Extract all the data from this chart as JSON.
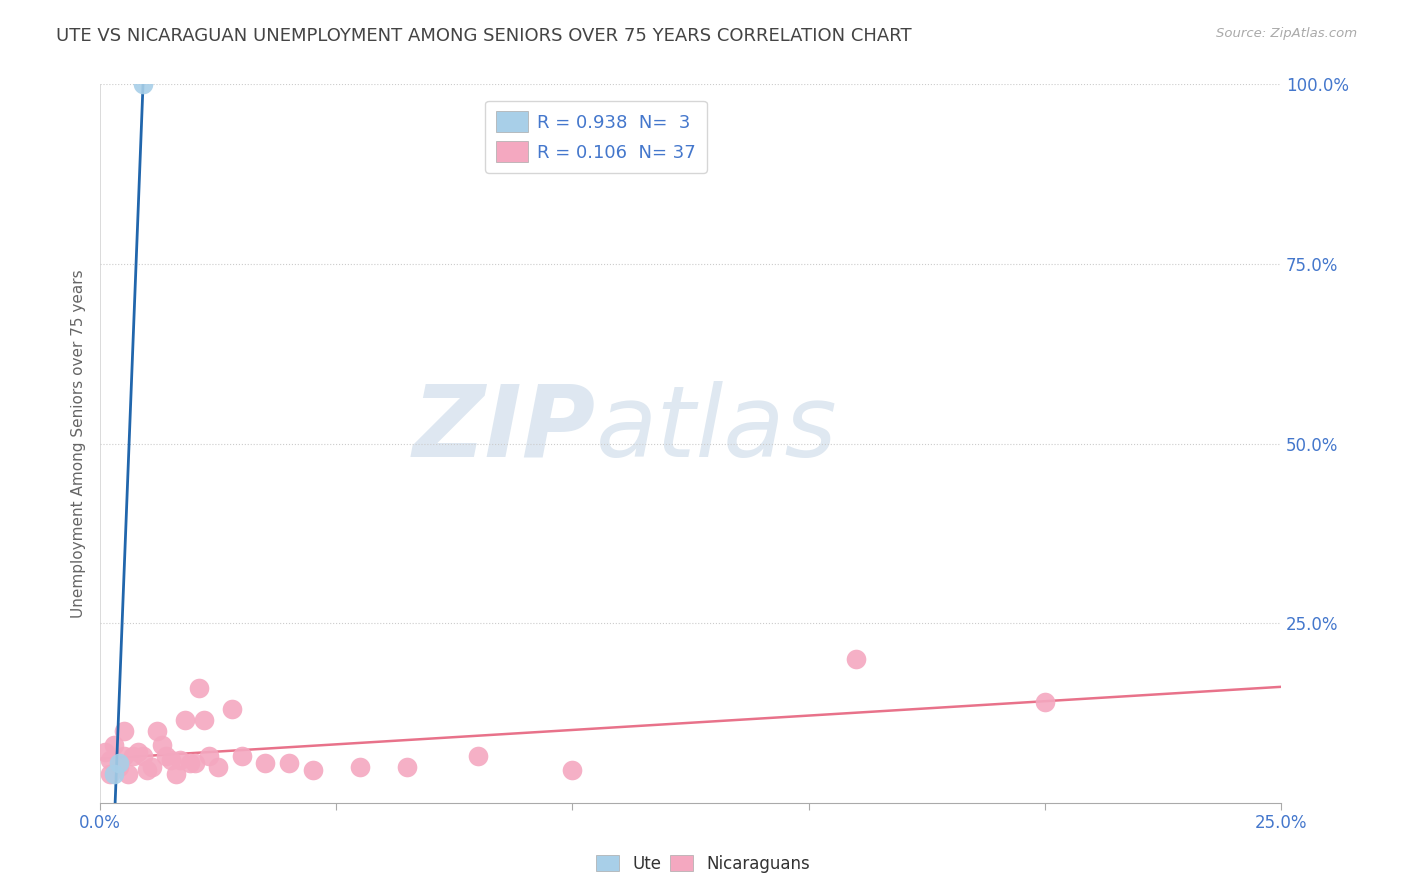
{
  "title": "UTE VS NICARAGUAN UNEMPLOYMENT AMONG SENIORS OVER 75 YEARS CORRELATION CHART",
  "source": "Source: ZipAtlas.com",
  "ylabel_label": "Unemployment Among Seniors over 75 years",
  "xlim": [
    0.0,
    0.25
  ],
  "ylim": [
    0.0,
    1.0
  ],
  "watermark_zip": "ZIP",
  "watermark_atlas": "atlas",
  "ute_points": [
    [
      0.009,
      1.0
    ],
    [
      0.004,
      0.055
    ],
    [
      0.003,
      0.04
    ]
  ],
  "nicaraguan_points": [
    [
      0.001,
      0.07
    ],
    [
      0.002,
      0.06
    ],
    [
      0.002,
      0.04
    ],
    [
      0.003,
      0.08
    ],
    [
      0.004,
      0.05
    ],
    [
      0.005,
      0.1
    ],
    [
      0.005,
      0.065
    ],
    [
      0.006,
      0.04
    ],
    [
      0.007,
      0.065
    ],
    [
      0.008,
      0.07
    ],
    [
      0.009,
      0.065
    ],
    [
      0.01,
      0.045
    ],
    [
      0.011,
      0.05
    ],
    [
      0.012,
      0.1
    ],
    [
      0.013,
      0.08
    ],
    [
      0.014,
      0.065
    ],
    [
      0.015,
      0.06
    ],
    [
      0.016,
      0.04
    ],
    [
      0.017,
      0.06
    ],
    [
      0.018,
      0.115
    ],
    [
      0.019,
      0.055
    ],
    [
      0.02,
      0.055
    ],
    [
      0.021,
      0.16
    ],
    [
      0.022,
      0.115
    ],
    [
      0.023,
      0.065
    ],
    [
      0.025,
      0.05
    ],
    [
      0.028,
      0.13
    ],
    [
      0.03,
      0.065
    ],
    [
      0.035,
      0.055
    ],
    [
      0.04,
      0.055
    ],
    [
      0.045,
      0.045
    ],
    [
      0.055,
      0.05
    ],
    [
      0.065,
      0.05
    ],
    [
      0.08,
      0.065
    ],
    [
      0.1,
      0.045
    ],
    [
      0.16,
      0.2
    ],
    [
      0.2,
      0.14
    ]
  ],
  "ute_color": "#a8cfe8",
  "nicaraguan_color": "#f4a8c0",
  "ute_line_color": "#2166ac",
  "nicaraguan_line_color": "#e8728a",
  "background_color": "#ffffff",
  "grid_color": "#cccccc",
  "title_color": "#444444",
  "axis_label_color": "#666666",
  "tick_label_color": "#4477cc",
  "legend_label_color": "#4477cc",
  "r_ute": 0.938,
  "n_ute": 3,
  "r_nicaraguan": 0.106,
  "n_nicaraguan": 37
}
